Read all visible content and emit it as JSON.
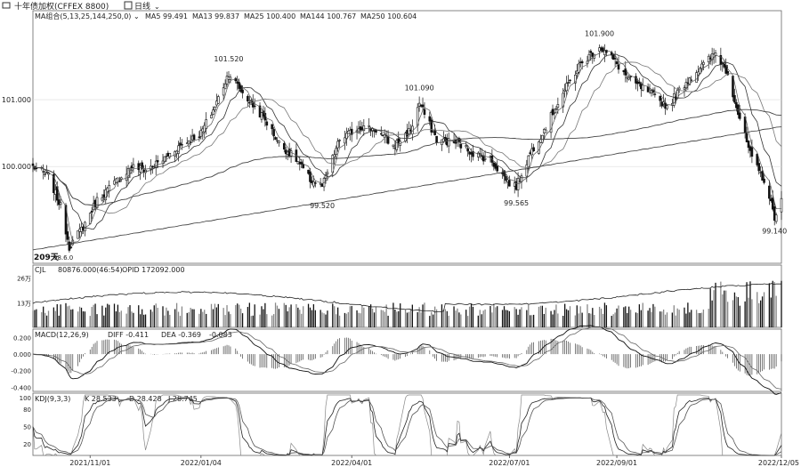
{
  "header": {
    "title": "十年债加权(CFFEX 8800)",
    "period_label": "日线",
    "ma_line": {
      "label": "MA组合(5,13,25,144,250,0)",
      "values": [
        {
          "name": "MA5",
          "value": "99.491"
        },
        {
          "name": "MA13",
          "value": "99.837"
        },
        {
          "name": "MA25",
          "value": "100.400"
        },
        {
          "name": "MA144",
          "value": "100.767"
        },
        {
          "name": "MA250",
          "value": "100.604"
        }
      ]
    }
  },
  "price_panel": {
    "y_ticks": [
      "101.000",
      "100.000"
    ],
    "y_tick_values": [
      101.0,
      100.0
    ],
    "annotations": [
      {
        "label": "101.520",
        "date": "2022-01-20",
        "value": 101.52
      },
      {
        "label": "99.520",
        "date": "2022-03-15",
        "value": 99.52
      },
      {
        "label": "101.090",
        "date": "2022-05-10",
        "value": 101.09
      },
      {
        "label": "99.565",
        "date": "2022-07-05",
        "value": 99.565
      },
      {
        "label": "101.900",
        "date": "2022-08-22",
        "value": 101.9
      },
      {
        "label": "99.140",
        "date": "2022-12-01",
        "value": 99.14
      }
    ],
    "bottom_left_label": "209天",
    "low_label": "98.6.0"
  },
  "volume_panel": {
    "label": "CJL",
    "readout": "80876.000(46:54)",
    "opid_readout": "OPID 172092.000",
    "y_ticks": [
      "26万",
      "13万"
    ],
    "y_tick_values": [
      260000,
      130000
    ]
  },
  "macd_panel": {
    "label": "MACD(12,26,9)",
    "diff": "DIFF -0.411",
    "dea": "DEA -0.369",
    "macd": "-0.083",
    "y_ticks": [
      "0.200",
      "0.000",
      "-0.200",
      "-0.400"
    ],
    "y_tick_values": [
      0.2,
      0.0,
      -0.2,
      -0.4
    ]
  },
  "kdj_panel": {
    "label": "KDJ(9,3,3)",
    "k": "K 28.533",
    "d": "D 28.428",
    "j": "J 28.745",
    "y_ticks": [
      "100",
      "80",
      "50",
      "20"
    ],
    "y_tick_values": [
      100,
      80,
      50,
      20
    ]
  },
  "x_axis": {
    "labels": [
      "2021/11/01",
      "2022/01/04",
      "2022/04/01",
      "2022/07/01",
      "2022/09/01",
      "2022/12/05"
    ]
  },
  "chart_data": {
    "type": "line",
    "x_range": [
      "2021-09-29",
      "2022-12-05"
    ],
    "x_ticks": [
      {
        "date": "2021-11-01",
        "label": "2021/11/01"
      },
      {
        "date": "2022-01-04",
        "label": "2022/01/04"
      },
      {
        "date": "2022-04-01",
        "label": "2022/04/01"
      },
      {
        "date": "2022-07-01",
        "label": "2022/07/01"
      },
      {
        "date": "2022-09-01",
        "label": "2022/09/01"
      },
      {
        "date": "2022-12-05",
        "label": "2022/12/05"
      }
    ],
    "price": {
      "ylim": [
        98.55,
        102.2
      ],
      "close": [
        {
          "date": "2021-09-29",
          "value": 100.0
        },
        {
          "date": "2021-10-08",
          "value": 99.85
        },
        {
          "date": "2021-10-15",
          "value": 99.4
        },
        {
          "date": "2021-10-20",
          "value": 98.8
        },
        {
          "date": "2021-10-28",
          "value": 99.1
        },
        {
          "date": "2021-11-05",
          "value": 99.5
        },
        {
          "date": "2021-11-15",
          "value": 99.75
        },
        {
          "date": "2021-11-25",
          "value": 100.0
        },
        {
          "date": "2021-12-03",
          "value": 99.95
        },
        {
          "date": "2021-12-13",
          "value": 100.1
        },
        {
          "date": "2021-12-22",
          "value": 100.3
        },
        {
          "date": "2022-01-04",
          "value": 100.5
        },
        {
          "date": "2022-01-12",
          "value": 100.9
        },
        {
          "date": "2022-01-20",
          "value": 101.4
        },
        {
          "date": "2022-01-28",
          "value": 101.1
        },
        {
          "date": "2022-02-10",
          "value": 100.7
        },
        {
          "date": "2022-02-18",
          "value": 100.35
        },
        {
          "date": "2022-02-28",
          "value": 100.1
        },
        {
          "date": "2022-03-08",
          "value": 99.8
        },
        {
          "date": "2022-03-15",
          "value": 99.7
        },
        {
          "date": "2022-03-25",
          "value": 100.4
        },
        {
          "date": "2022-04-06",
          "value": 100.6
        },
        {
          "date": "2022-04-15",
          "value": 100.55
        },
        {
          "date": "2022-04-25",
          "value": 100.3
        },
        {
          "date": "2022-05-05",
          "value": 100.55
        },
        {
          "date": "2022-05-10",
          "value": 100.95
        },
        {
          "date": "2022-05-20",
          "value": 100.4
        },
        {
          "date": "2022-06-01",
          "value": 100.35
        },
        {
          "date": "2022-06-10",
          "value": 100.2
        },
        {
          "date": "2022-06-20",
          "value": 100.1
        },
        {
          "date": "2022-07-01",
          "value": 99.75
        },
        {
          "date": "2022-07-05",
          "value": 99.7
        },
        {
          "date": "2022-07-13",
          "value": 100.2
        },
        {
          "date": "2022-07-22",
          "value": 100.6
        },
        {
          "date": "2022-08-01",
          "value": 101.1
        },
        {
          "date": "2022-08-10",
          "value": 101.5
        },
        {
          "date": "2022-08-22",
          "value": 101.8
        },
        {
          "date": "2022-08-30",
          "value": 101.6
        },
        {
          "date": "2022-09-08",
          "value": 101.3
        },
        {
          "date": "2022-09-20",
          "value": 101.1
        },
        {
          "date": "2022-09-30",
          "value": 100.9
        },
        {
          "date": "2022-10-12",
          "value": 101.3
        },
        {
          "date": "2022-10-20",
          "value": 101.5
        },
        {
          "date": "2022-10-28",
          "value": 101.7
        },
        {
          "date": "2022-11-04",
          "value": 101.4
        },
        {
          "date": "2022-11-10",
          "value": 100.8
        },
        {
          "date": "2022-11-18",
          "value": 100.1
        },
        {
          "date": "2022-11-25",
          "value": 99.8
        },
        {
          "date": "2022-12-01",
          "value": 99.25
        },
        {
          "date": "2022-12-05",
          "value": 99.49
        }
      ]
    },
    "volume": {
      "ylim": [
        0,
        300000
      ]
    },
    "macd": {
      "ylim": [
        -0.45,
        0.28
      ]
    },
    "kdj": {
      "ylim": [
        0,
        105
      ]
    }
  }
}
